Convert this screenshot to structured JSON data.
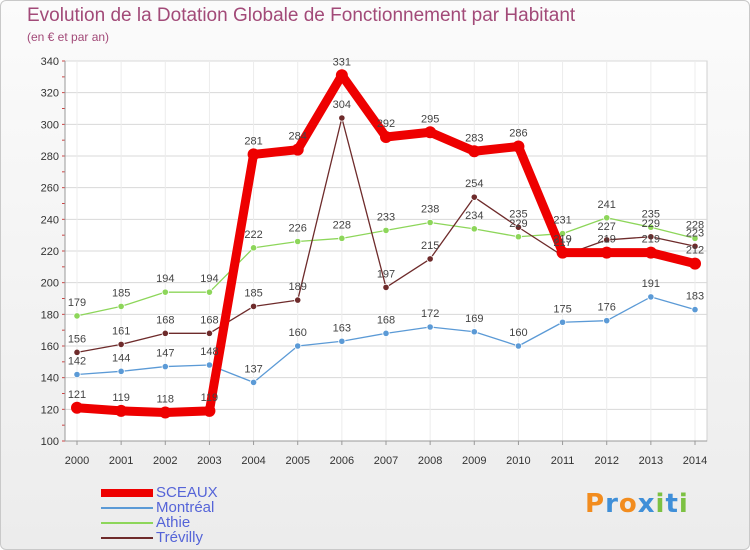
{
  "header": {
    "title": "Evolution de la Dotation Globale de Fonctionnement par Habitant",
    "subtitle": "(en € et par an)"
  },
  "chart_data": {
    "type": "line",
    "title": "Evolution de la Dotation Globale de Fonctionnement par Habitant",
    "subtitle": "(en € et par an)",
    "xlabel": "",
    "ylabel": "",
    "x": [
      "2000",
      "2001",
      "2002",
      "2003",
      "2004",
      "2005",
      "2006",
      "2007",
      "2008",
      "2009",
      "2010",
      "2011",
      "2012",
      "2013",
      "2014"
    ],
    "ylim": [
      100,
      340
    ],
    "yticks": [
      100,
      120,
      140,
      160,
      180,
      200,
      220,
      240,
      260,
      280,
      300,
      320,
      340
    ],
    "grid": true,
    "legend_position": "bottom-left",
    "series": [
      {
        "name": "SCEAUX",
        "color": "#ee0000",
        "values": [
          121,
          119,
          118,
          119,
          281,
          284,
          331,
          292,
          295,
          283,
          286,
          219,
          219,
          219,
          212
        ]
      },
      {
        "name": "Montréal",
        "color": "#5b9ad6",
        "values": [
          142,
          144,
          147,
          148,
          137,
          160,
          163,
          168,
          172,
          169,
          160,
          175,
          176,
          191,
          183
        ]
      },
      {
        "name": "Athie",
        "color": "#8dd65a",
        "values": [
          179,
          185,
          194,
          194,
          222,
          226,
          228,
          233,
          238,
          234,
          229,
          231,
          241,
          235,
          228
        ]
      },
      {
        "name": "Trévilly",
        "color": "#6e2b2b",
        "values": [
          156,
          161,
          168,
          168,
          185,
          189,
          304,
          197,
          215,
          254,
          235,
          217,
          227,
          229,
          223
        ]
      }
    ]
  },
  "logo": {
    "letters": [
      "P",
      "r",
      "o",
      "x",
      "i",
      "t",
      "i"
    ],
    "colors": [
      "#f28c1e",
      "#3f8fd8",
      "#f28c1e",
      "#3f8fd8",
      "#7cc142",
      "#3f8fd8",
      "#7cc142"
    ]
  }
}
